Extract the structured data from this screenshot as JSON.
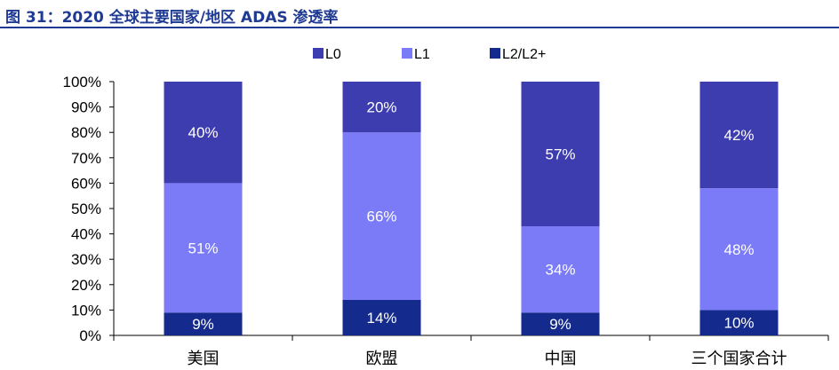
{
  "header": {
    "title": "图 31：2020 全球主要国家/地区 ADAS 渗透率"
  },
  "colors": {
    "title": "#1f3a93",
    "L0": "#3d3db0",
    "L1": "#7b7bf7",
    "L2": "#142a8c"
  },
  "chart_data": {
    "type": "bar",
    "stacked": true,
    "percent": true,
    "categories": [
      "美国",
      "欧盟",
      "中国",
      "三个国家合计"
    ],
    "series": [
      {
        "name": "L2/L2+",
        "values": [
          9,
          14,
          9,
          10
        ],
        "labels": [
          "9%",
          "14%",
          "9%",
          "10%"
        ],
        "color": "#142a8c"
      },
      {
        "name": "L1",
        "values": [
          51,
          66,
          34,
          48
        ],
        "labels": [
          "51%",
          "66%",
          "34%",
          "48%"
        ],
        "color": "#7b7bf7"
      },
      {
        "name": "L0",
        "values": [
          40,
          20,
          57,
          42
        ],
        "labels": [
          "40%",
          "20%",
          "57%",
          "42%"
        ],
        "color": "#3d3db0"
      }
    ],
    "legend": {
      "order": [
        "L0",
        "L1",
        "L2/L2+"
      ],
      "placement": "top"
    },
    "ylim": [
      0,
      100
    ],
    "yticks": [
      "0%",
      "10%",
      "20%",
      "30%",
      "40%",
      "50%",
      "60%",
      "70%",
      "80%",
      "90%",
      "100%"
    ],
    "grid": false
  }
}
